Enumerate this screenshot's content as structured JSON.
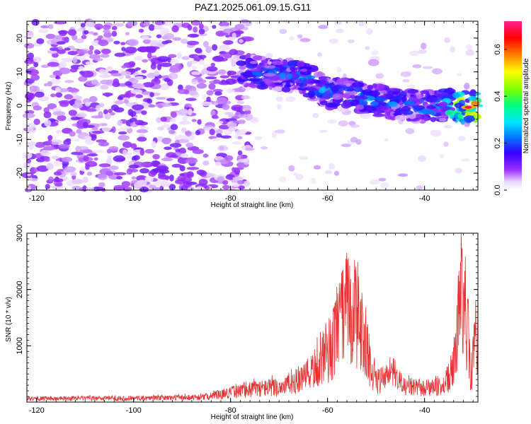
{
  "title": "PAZ1.2025.061.09.15.G11",
  "colors": {
    "snr_line": "#e63232",
    "heatmap_low": "#8a2be2",
    "axis": "#000000"
  },
  "chart_data": [
    {
      "type": "heatmap",
      "title": "PAZ1.2025.061.09.15.G11",
      "xlabel": "Height of straight line (km)",
      "ylabel": "Frequency (Hz)",
      "xlim": [
        -122,
        -29
      ],
      "ylim": [
        -25,
        25
      ],
      "x_ticks": [
        -120,
        -100,
        -80,
        -60,
        -40
      ],
      "y_ticks": [
        -20,
        -10,
        0,
        10,
        20
      ],
      "colorbar": {
        "label": "Normalized spectral amplitude",
        "range": [
          0.0,
          0.72
        ],
        "ticks": [
          0.0,
          0.2,
          0.4,
          0.6
        ],
        "colormap": "rainbow (white-violet-blue-cyan-green-yellow-red-magenta)"
      },
      "ridge": [
        {
          "x": -78,
          "y": 11,
          "amp": 0.2
        },
        {
          "x": -72,
          "y": 9,
          "amp": 0.22
        },
        {
          "x": -66,
          "y": 9,
          "amp": 0.24
        },
        {
          "x": -60,
          "y": 4,
          "amp": 0.24
        },
        {
          "x": -54,
          "y": 3,
          "amp": 0.22
        },
        {
          "x": -48,
          "y": 1,
          "amp": 0.22
        },
        {
          "x": -42,
          "y": 0,
          "amp": 0.22
        },
        {
          "x": -36,
          "y": 0,
          "amp": 0.3
        },
        {
          "x": -31,
          "y": -0.5,
          "amp": 0.62
        }
      ],
      "noise_region": {
        "x_range": [
          -122,
          -80
        ],
        "y_range": [
          -25,
          25
        ],
        "amp": 0.1
      }
    },
    {
      "type": "line",
      "title": "",
      "xlabel": "Height of straight line (km)",
      "ylabel": "SNR (10 * v/v)",
      "xlim": [
        -122,
        -29
      ],
      "ylim": [
        0,
        3000
      ],
      "x_ticks": [
        -120,
        -100,
        -80,
        -60,
        -40
      ],
      "y_ticks": [
        1000,
        2000,
        3000
      ],
      "envelope": [
        {
          "x": -122,
          "y": 90
        },
        {
          "x": -100,
          "y": 100
        },
        {
          "x": -85,
          "y": 130
        },
        {
          "x": -80,
          "y": 250
        },
        {
          "x": -75,
          "y": 350
        },
        {
          "x": -70,
          "y": 400
        },
        {
          "x": -65,
          "y": 600
        },
        {
          "x": -60,
          "y": 1200
        },
        {
          "x": -58,
          "y": 1800
        },
        {
          "x": -56,
          "y": 2500
        },
        {
          "x": -54,
          "y": 2300
        },
        {
          "x": -52,
          "y": 1400
        },
        {
          "x": -50,
          "y": 500
        },
        {
          "x": -47,
          "y": 700
        },
        {
          "x": -44,
          "y": 400
        },
        {
          "x": -40,
          "y": 350
        },
        {
          "x": -36,
          "y": 400
        },
        {
          "x": -34,
          "y": 900
        },
        {
          "x": -32.5,
          "y": 2800
        },
        {
          "x": -31.5,
          "y": 2500
        },
        {
          "x": -30.5,
          "y": 600
        },
        {
          "x": -29.5,
          "y": 1600
        },
        {
          "x": -29,
          "y": 1900
        }
      ]
    }
  ]
}
